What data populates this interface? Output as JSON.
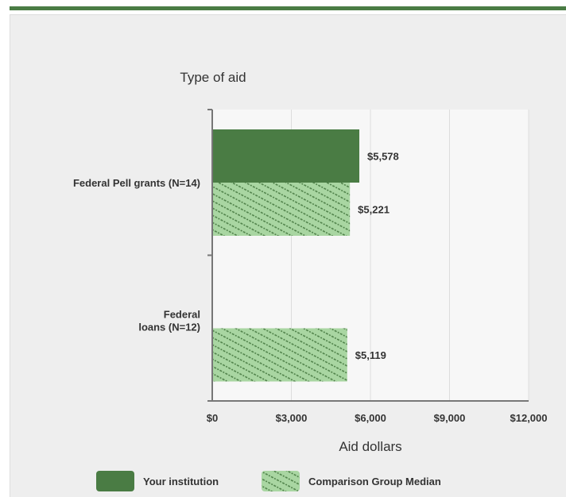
{
  "chart_data": {
    "type": "bar",
    "orientation": "horizontal",
    "y_axis_title": "Type of aid",
    "x_axis_title": "Aid dollars",
    "categories": [
      "Federal Pell grants (N=14)",
      "Federal loans (N=12)"
    ],
    "category_lines": [
      [
        "Federal Pell grants (N=14)"
      ],
      [
        "Federal",
        "loans (N=12)"
      ]
    ],
    "series": [
      {
        "name": "Your institution",
        "values": [
          5578,
          null
        ],
        "labels": [
          "$5,578",
          ""
        ],
        "color": "#4a7c44",
        "pattern": "solid"
      },
      {
        "name": "Comparison Group Median",
        "values": [
          5221,
          5119
        ],
        "labels": [
          "$5,221",
          "$5,119"
        ],
        "color": "#a9d6a2",
        "pattern": "diagonal-hatch"
      }
    ],
    "xlim": [
      0,
      12000
    ],
    "x_ticks": [
      0,
      3000,
      6000,
      9000,
      12000
    ],
    "x_tick_labels": [
      "$0",
      "$3,000",
      "$6,000",
      "$9,000",
      "$12,000"
    ],
    "grid": true,
    "legend_position": "bottom"
  },
  "colors": {
    "accent": "#4a7c44",
    "hatch_fill": "#a9d6a2",
    "hatch_stroke": "#4a7c44",
    "panel_bg": "#eeeeee",
    "plot_bg": "#f7f7f7",
    "gridline": "#dddddd",
    "axis": "#777777"
  }
}
